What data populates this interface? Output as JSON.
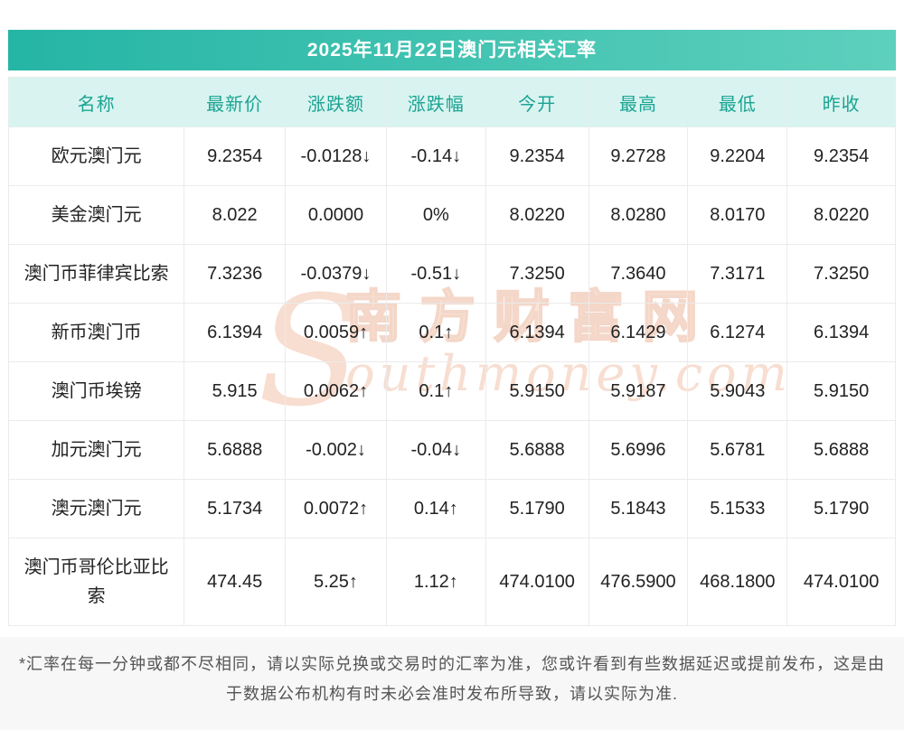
{
  "title": "2025年11月22日澳门元相关汇率",
  "colors": {
    "up": "#e80000",
    "down": "#009900",
    "flat": "#222222",
    "header_text": "#1ba393",
    "header_bg": "#d9f4f0",
    "title_gradient": [
      "#25b5a5",
      "#5ed0bd"
    ]
  },
  "watermark": {
    "initial": "S",
    "cn": "南方财富网",
    "en": "outhmoney.com"
  },
  "table": {
    "headers": [
      "名称",
      "最新价",
      "涨跌额",
      "涨跌幅",
      "今开",
      "最高",
      "最低",
      "昨收"
    ],
    "rows": [
      {
        "name": "欧元澳门元",
        "latest": "9.2354",
        "change": "-0.0128↓",
        "pct": "-0.14↓",
        "open": "9.2354",
        "high": "9.2728",
        "low": "9.2204",
        "prev": "9.2354",
        "trend": "down"
      },
      {
        "name": "美金澳门元",
        "latest": "8.022",
        "change": "0.0000",
        "pct": "0%",
        "open": "8.0220",
        "high": "8.0280",
        "low": "8.0170",
        "prev": "8.0220",
        "trend": "flat"
      },
      {
        "name": "澳门币菲律宾比索",
        "latest": "7.3236",
        "change": "-0.0379↓",
        "pct": "-0.51↓",
        "open": "7.3250",
        "high": "7.3640",
        "low": "7.3171",
        "prev": "7.3250",
        "trend": "down"
      },
      {
        "name": "新币澳门币",
        "latest": "6.1394",
        "change": "0.0059↑",
        "pct": "0.1↑",
        "open": "6.1394",
        "high": "6.1429",
        "low": "6.1274",
        "prev": "6.1394",
        "trend": "up"
      },
      {
        "name": "澳门币埃镑",
        "latest": "5.915",
        "change": "0.0062↑",
        "pct": "0.1↑",
        "open": "5.9150",
        "high": "5.9187",
        "low": "5.9043",
        "prev": "5.9150",
        "trend": "up"
      },
      {
        "name": "加元澳门元",
        "latest": "5.6888",
        "change": "-0.002↓",
        "pct": "-0.04↓",
        "open": "5.6888",
        "high": "5.6996",
        "low": "5.6781",
        "prev": "5.6888",
        "trend": "down"
      },
      {
        "name": "澳元澳门元",
        "latest": "5.1734",
        "change": "0.0072↑",
        "pct": "0.14↑",
        "open": "5.1790",
        "high": "5.1843",
        "low": "5.1533",
        "prev": "5.1790",
        "trend": "up"
      },
      {
        "name": "澳门币哥伦比亚比索",
        "latest": "474.45",
        "change": "5.25↑",
        "pct": "1.12↑",
        "open": "474.0100",
        "high": "476.5900",
        "low": "468.1800",
        "prev": "474.0100",
        "trend": "up"
      }
    ]
  },
  "footnote": "*汇率在每一分钟或都不尽相同，请以实际兑换或交易时的汇率为准，您或许看到有些数据延迟或提前发布，这是由于数据公布机构有时未必会准时发布所导致，请以实际为准."
}
